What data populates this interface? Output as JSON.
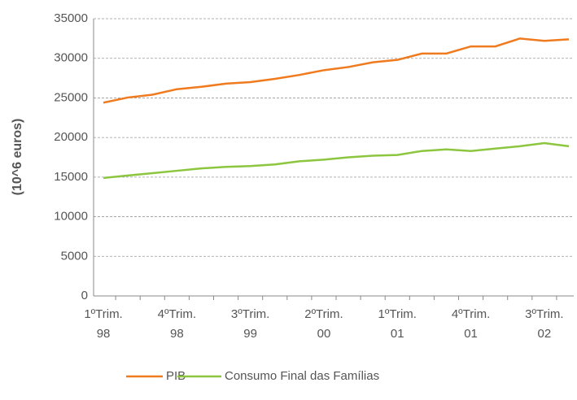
{
  "chart_data": {
    "type": "line",
    "y_label": "(10^6 euros)",
    "categories": [
      "1ºTrim.\n98",
      null,
      null,
      "4ºTrim.\n98",
      null,
      null,
      "3ºTrim.\n99",
      null,
      null,
      "2ºTrim.\n00",
      null,
      null,
      "1ºTrim.\n01",
      null,
      null,
      "4ºTrim.\n01",
      null,
      null,
      "3ºTrim.\n02",
      null
    ],
    "series": [
      {
        "name": "PIB",
        "color": "#f07a1e",
        "values": [
          24400,
          25050,
          25400,
          26100,
          26400,
          26800,
          27000,
          27400,
          27900,
          28500,
          28900,
          29500,
          29800,
          30600,
          30600,
          31500,
          31500,
          32500,
          32200,
          32400
        ]
      },
      {
        "name": "Consumo Final das Famílias",
        "color": "#8cc63f",
        "values": [
          14900,
          15200,
          15500,
          15800,
          16100,
          16300,
          16400,
          16600,
          17000,
          17200,
          17500,
          17700,
          17800,
          18300,
          18500,
          18300,
          18600,
          18900,
          19300,
          18900
        ]
      }
    ],
    "ylim": [
      0,
      35000
    ],
    "yticks": [
      0,
      5000,
      10000,
      15000,
      20000,
      25000,
      30000,
      35000
    ],
    "grid": true,
    "legend": "bottom"
  }
}
